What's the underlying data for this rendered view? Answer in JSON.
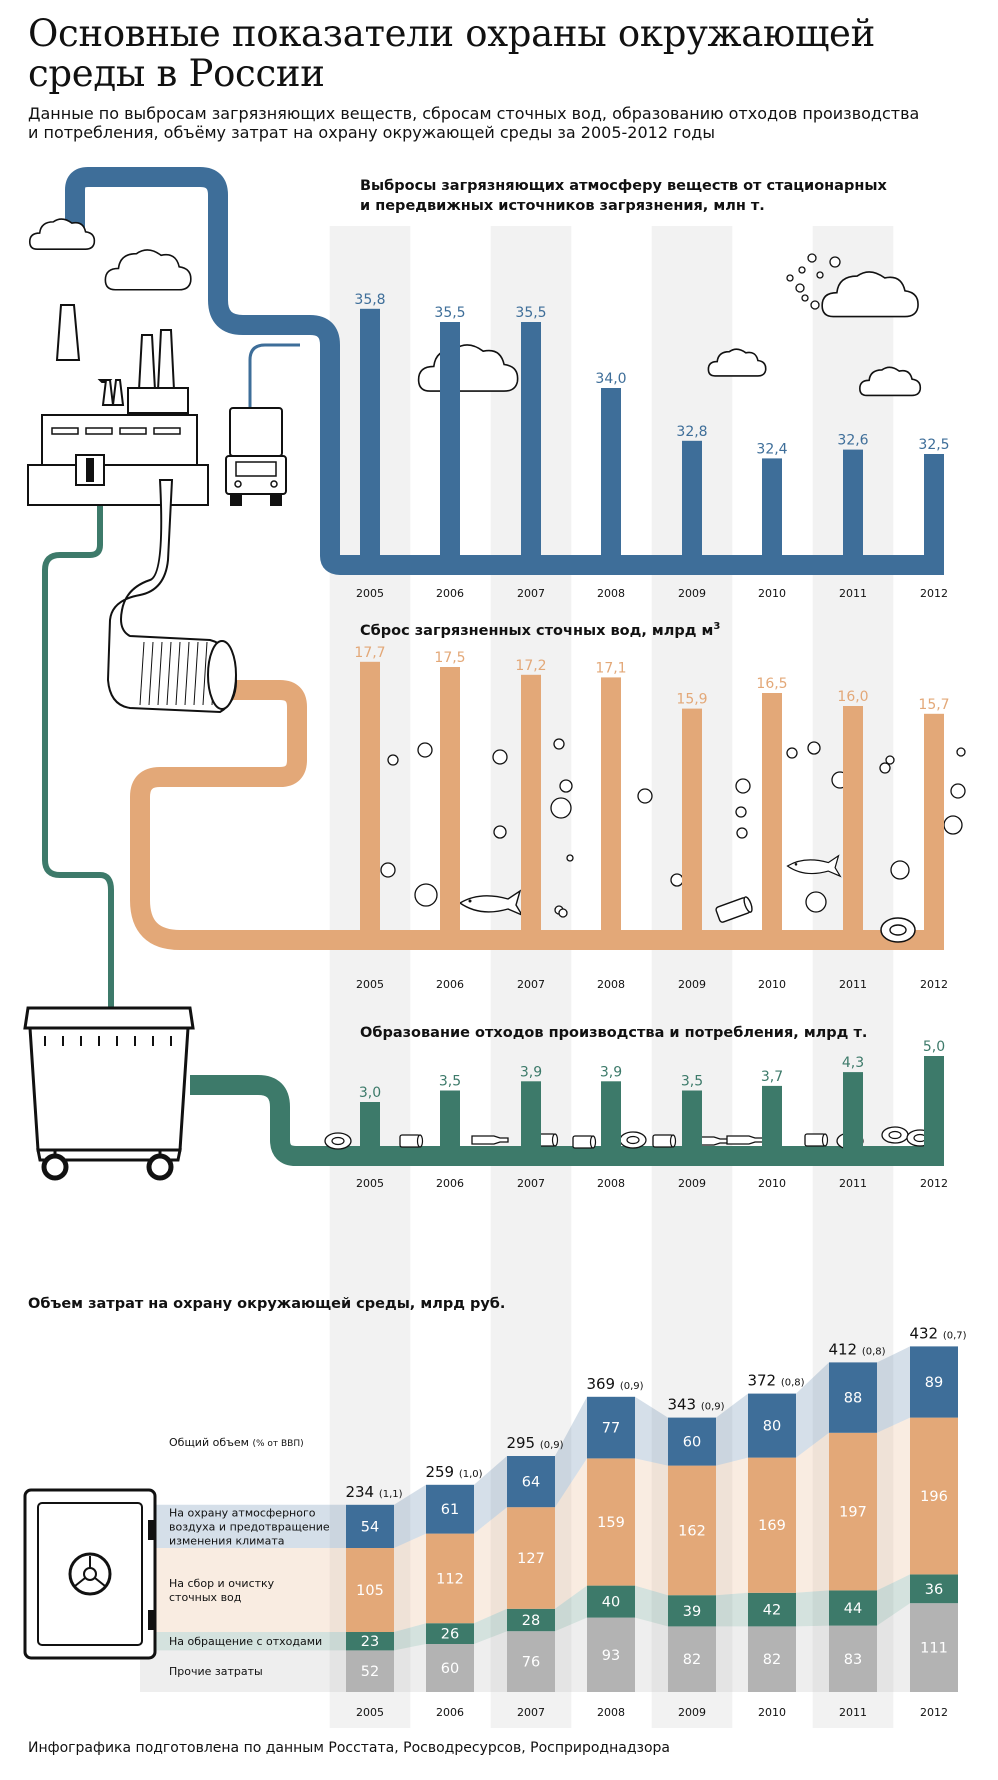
{
  "title": "Основные показатели охраны окружающей среды в России",
  "subtitle": "Данные по выбросам загрязняющих веществ, сбросам сточных вод, образованию отходов производства и потребления, объёму затрат на охрану окружающей среды за 2005-2012 годы",
  "footer": "Инфографика подготовлена по данным Росстата, Росводресурсов, Росприроднадзора",
  "colors": {
    "air": "#3e6e99",
    "water": "#e3a878",
    "waste": "#3d7a6a",
    "other": "#b3b3b3",
    "column_bg": "#f2f2f2"
  },
  "icons": [
    "factory-icon",
    "truck-icon",
    "cloud-icon",
    "pipe-icon",
    "fish-icon",
    "can-icon",
    "tire-icon",
    "bottle-icon",
    "garbage-container-icon",
    "safe-icon",
    "bubble-icon"
  ],
  "chart_data": [
    {
      "type": "bar",
      "title_lines": [
        "Выбросы загрязняющих атмосферу веществ от стационарных",
        "и передвижных источников загрязнения, млн т."
      ],
      "categories": [
        "2005",
        "2006",
        "2007",
        "2008",
        "2009",
        "2010",
        "2011",
        "2012"
      ],
      "values": [
        35.8,
        35.5,
        35.5,
        34.0,
        32.8,
        32.4,
        32.6,
        32.5
      ],
      "value_labels": [
        "35,8",
        "35,5",
        "35,5",
        "34,0",
        "32,8",
        "32,4",
        "32,6",
        "32,5"
      ],
      "color": "#3e6e99"
    },
    {
      "type": "bar",
      "title": "Сброс загрязненных сточных вод, млрд м",
      "title_sup": "3",
      "categories": [
        "2005",
        "2006",
        "2007",
        "2008",
        "2009",
        "2010",
        "2011",
        "2012"
      ],
      "values": [
        17.7,
        17.5,
        17.2,
        17.1,
        15.9,
        16.5,
        16.0,
        15.7
      ],
      "value_labels": [
        "17,7",
        "17,5",
        "17,2",
        "17,1",
        "15,9",
        "16,5",
        "16,0",
        "15,7"
      ],
      "color": "#e3a878"
    },
    {
      "type": "bar",
      "title": "Образование отходов производства и потребления, млрд т.",
      "categories": [
        "2005",
        "2006",
        "2007",
        "2008",
        "2009",
        "2010",
        "2011",
        "2012"
      ],
      "values": [
        3.0,
        3.5,
        3.9,
        3.9,
        3.5,
        3.7,
        4.3,
        5.0
      ],
      "value_labels": [
        "3,0",
        "3,5",
        "3,9",
        "3,9",
        "3,5",
        "3,7",
        "4,3",
        "5,0"
      ],
      "color": "#3d7a6a"
    },
    {
      "type": "bar",
      "stacked": true,
      "title": "Объем затрат на охрану окружающей среды, млрд руб.",
      "categories": [
        "2005",
        "2006",
        "2007",
        "2008",
        "2009",
        "2010",
        "2011",
        "2012"
      ],
      "totals": [
        234,
        259,
        295,
        369,
        343,
        372,
        412,
        432
      ],
      "gdp_share": [
        "(1,1)",
        "(1,0)",
        "(0,9)",
        "(0,9)",
        "(0,9)",
        "(0,8)",
        "(0,8)",
        "(0,7)"
      ],
      "total_legend": "Общий объем",
      "total_legend_note": "(% от ВВП)",
      "series": [
        {
          "name": "Прочие затраты",
          "name_lines": [
            "Прочие затраты"
          ],
          "color": "#b3b3b3",
          "values": [
            52,
            60,
            76,
            93,
            82,
            82,
            83,
            111
          ]
        },
        {
          "name": "На обращение с отходами",
          "name_lines": [
            "На обращение с отходами"
          ],
          "color": "#3d7a6a",
          "values": [
            23,
            26,
            28,
            40,
            39,
            42,
            44,
            36
          ]
        },
        {
          "name": "На сбор и очистку сточных вод",
          "name_lines": [
            "На сбор и очистку",
            "сточных вод"
          ],
          "color": "#e3a878",
          "values": [
            105,
            112,
            127,
            159,
            162,
            169,
            197,
            196
          ]
        },
        {
          "name": "На охрану атмосферного воздуха и предотвращение изменения климата",
          "name_lines": [
            "На охрану атмосферного",
            "воздуха и предотвращение",
            "изменения климата"
          ],
          "color": "#3e6e99",
          "values": [
            54,
            61,
            64,
            77,
            60,
            80,
            88,
            89
          ]
        }
      ]
    }
  ]
}
